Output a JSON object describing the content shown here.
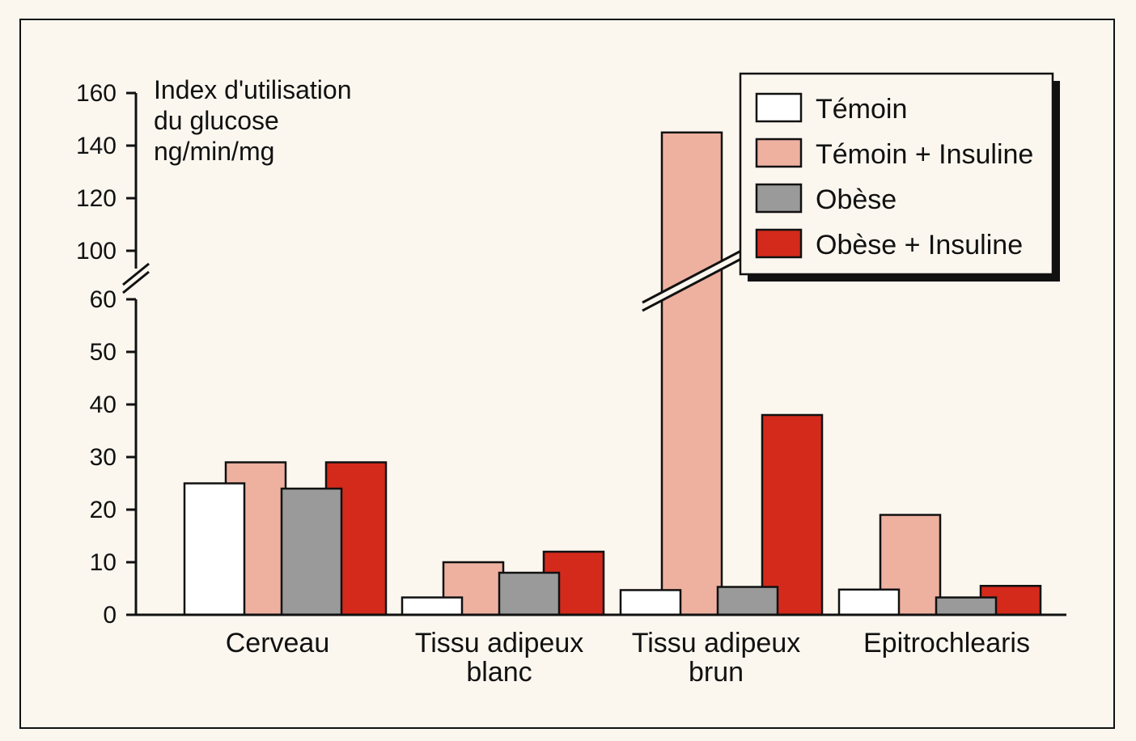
{
  "chart_data": {
    "type": "bar",
    "ylabel_lines": [
      "Index d'utilisation",
      "du glucose",
      "ng/min/mg"
    ],
    "categories": [
      [
        "Cerveau"
      ],
      [
        "Tissu adipeux",
        "blanc"
      ],
      [
        "Tissu adipeux",
        "brun"
      ],
      [
        "Epitrochlearis"
      ]
    ],
    "series": [
      {
        "name": "Témoin",
        "color": "#ffffff",
        "values": [
          25,
          3.3,
          4.7,
          4.8
        ]
      },
      {
        "name": "Témoin + Insuline",
        "color": "#eeb1a0",
        "values": [
          29,
          10,
          145,
          19
        ]
      },
      {
        "name": "Obèse",
        "color": "#9a9a9a",
        "values": [
          24,
          8,
          5.3,
          3.3
        ]
      },
      {
        "name": "Obèse + Insuline",
        "color": "#d42a1c",
        "values": [
          29,
          12,
          38,
          5.5
        ]
      }
    ],
    "y_ticks_lower": [
      0,
      10,
      20,
      30,
      40,
      50,
      60
    ],
    "y_ticks_upper": [
      100,
      120,
      140,
      160
    ],
    "axis_break": [
      60,
      100
    ],
    "ylim": [
      0,
      160
    ],
    "legend_position": "top-right",
    "grid": false
  }
}
